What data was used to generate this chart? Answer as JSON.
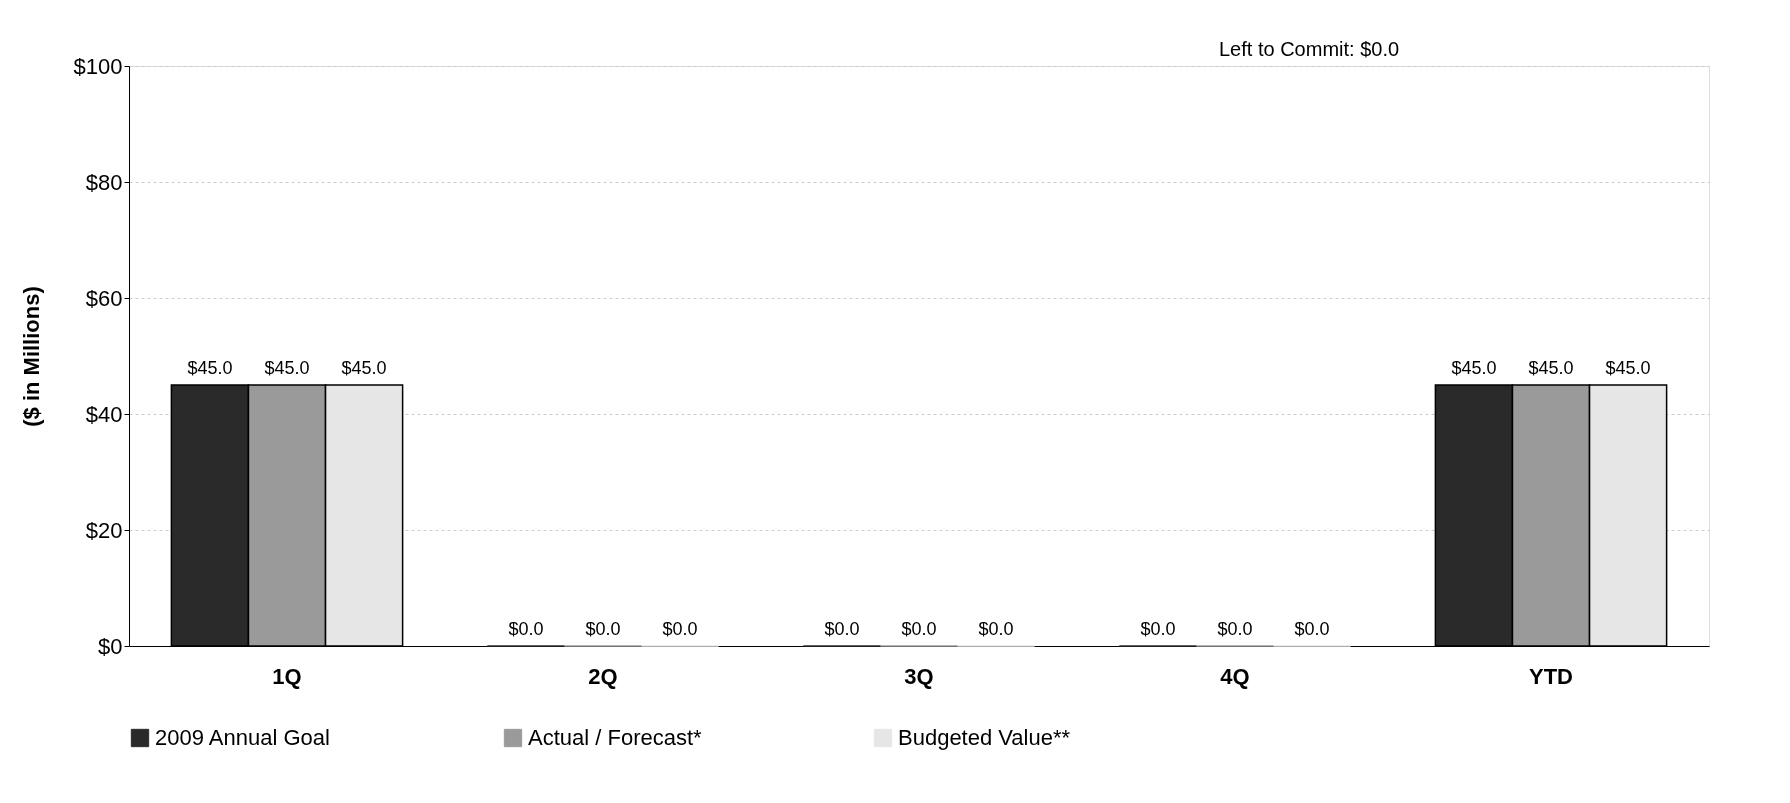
{
  "chart_data": {
    "type": "bar",
    "ylabel": "($ in Millions)",
    "categories": [
      "1Q",
      "2Q",
      "3Q",
      "4Q",
      "YTD"
    ],
    "series": [
      {
        "name": "2009 Annual Goal",
        "color": "#2a2a2a",
        "values": [
          45.0,
          0.0,
          0.0,
          0.0,
          45.0
        ],
        "value_labels": [
          "$45.0",
          "$0.0",
          "$0.0",
          "$0.0",
          "$45.0"
        ]
      },
      {
        "name": "Actual / Forecast*",
        "color": "#9a9a9a",
        "values": [
          45.0,
          0.0,
          0.0,
          0.0,
          45.0
        ],
        "value_labels": [
          "$45.0",
          "$0.0",
          "$0.0",
          "$0.0",
          "$45.0"
        ]
      },
      {
        "name": "Budgeted Value**",
        "color": "#e6e6e6",
        "values": [
          45.0,
          0.0,
          0.0,
          0.0,
          45.0
        ],
        "value_labels": [
          "$45.0",
          "$0.0",
          "$0.0",
          "$0.0",
          "$45.0"
        ]
      }
    ],
    "ylim": [
      0,
      100
    ],
    "yticks": [
      {
        "value": 0,
        "label": "$0"
      },
      {
        "value": 20,
        "label": "$20"
      },
      {
        "value": 40,
        "label": "$40"
      },
      {
        "value": 60,
        "label": "$60"
      },
      {
        "value": 80,
        "label": "$80"
      },
      {
        "value": 100,
        "label": "$100"
      }
    ],
    "annotations": [
      "Left to Commit:      $0.0"
    ],
    "grid": "y",
    "legend": "bottom"
  }
}
